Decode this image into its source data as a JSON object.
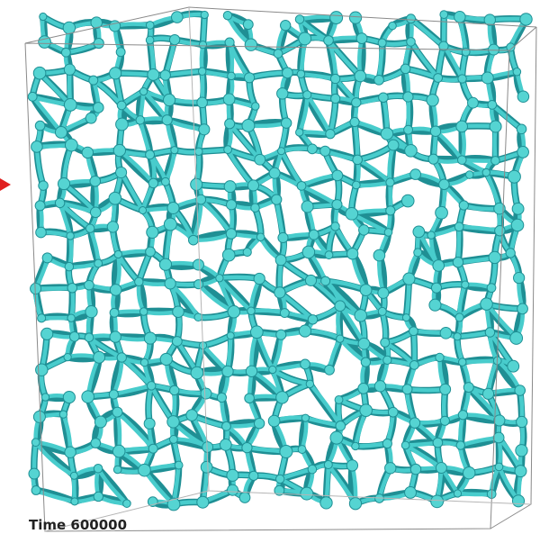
{
  "caption": "Time 600000"
}
